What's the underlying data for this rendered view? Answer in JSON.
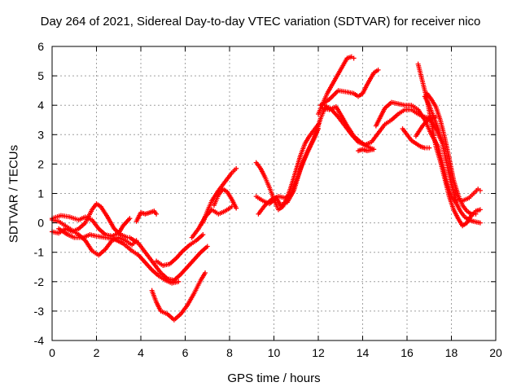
{
  "chart_data": {
    "type": "scatter",
    "title": "Day 264 of 2021, Sidereal Day-to-day VTEC variation (SDTVAR) for receiver nico",
    "xlabel": "GPS time / hours",
    "ylabel": "SDTVAR / TECUs",
    "xlim": [
      0,
      20
    ],
    "ylim": [
      -4,
      6
    ],
    "xticks": [
      "0",
      "2",
      "4",
      "6",
      "8",
      "10",
      "12",
      "14",
      "16",
      "18",
      "20"
    ],
    "yticks": [
      "-4",
      "-3",
      "-2",
      "-1",
      "0",
      "1",
      "2",
      "3",
      "4",
      "5",
      "6"
    ],
    "grid": true,
    "marker": "+",
    "color": "#ff0000",
    "series": [
      {
        "values": [
          [
            0.0,
            0.1
          ],
          [
            0.3,
            0.05
          ],
          [
            0.6,
            -0.1
          ],
          [
            0.9,
            -0.25
          ],
          [
            1.2,
            -0.4
          ],
          [
            1.5,
            -0.6
          ],
          [
            1.8,
            -0.95
          ],
          [
            2.1,
            -1.1
          ],
          [
            2.4,
            -0.9
          ],
          [
            2.7,
            -0.6
          ],
          [
            3.0,
            -0.5
          ],
          [
            3.3,
            -0.6
          ],
          [
            3.6,
            -0.75
          ],
          [
            3.8,
            -0.6
          ]
        ]
      },
      {
        "values": [
          [
            0.0,
            -0.3
          ],
          [
            0.3,
            -0.35
          ],
          [
            0.6,
            -0.2
          ],
          [
            0.9,
            -0.3
          ],
          [
            1.2,
            -0.2
          ],
          [
            1.5,
            0.0
          ],
          [
            1.8,
            0.45
          ],
          [
            2.0,
            0.65
          ],
          [
            2.2,
            0.55
          ],
          [
            2.5,
            0.2
          ],
          [
            2.8,
            -0.2
          ],
          [
            3.1,
            -0.4
          ],
          [
            3.4,
            -0.5
          ]
        ]
      },
      {
        "values": [
          [
            0.0,
            0.15
          ],
          [
            0.4,
            0.25
          ],
          [
            0.8,
            0.2
          ],
          [
            1.2,
            0.1
          ],
          [
            1.5,
            0.2
          ],
          [
            1.8,
            0.1
          ],
          [
            2.1,
            -0.2
          ],
          [
            2.4,
            -0.4
          ],
          [
            2.7,
            -0.45
          ],
          [
            3.0,
            -0.35
          ],
          [
            3.2,
            -0.1
          ],
          [
            3.5,
            0.15
          ]
        ]
      },
      {
        "values": [
          [
            0.3,
            -0.2
          ],
          [
            0.7,
            -0.4
          ],
          [
            1.0,
            -0.5
          ],
          [
            1.4,
            -0.5
          ],
          [
            1.7,
            -0.4
          ],
          [
            2.0,
            -0.45
          ],
          [
            2.4,
            -0.5
          ],
          [
            2.8,
            -0.55
          ],
          [
            3.2,
            -0.7
          ],
          [
            3.6,
            -0.95
          ],
          [
            3.9,
            -1.1
          ],
          [
            4.2,
            -1.35
          ],
          [
            4.5,
            -1.6
          ],
          [
            4.8,
            -1.8
          ],
          [
            5.1,
            -1.95
          ],
          [
            5.4,
            -2.05
          ],
          [
            5.7,
            -2.0
          ]
        ]
      },
      {
        "values": [
          [
            3.5,
            -0.5
          ],
          [
            3.9,
            -0.7
          ],
          [
            4.2,
            -1.0
          ],
          [
            4.6,
            -1.4
          ],
          [
            4.9,
            -1.7
          ],
          [
            5.2,
            -1.9
          ],
          [
            5.5,
            -1.95
          ],
          [
            5.8,
            -1.75
          ],
          [
            6.1,
            -1.5
          ],
          [
            6.4,
            -1.25
          ],
          [
            6.7,
            -1.0
          ],
          [
            7.0,
            -0.8
          ]
        ]
      },
      {
        "values": [
          [
            4.7,
            -1.3
          ],
          [
            5.0,
            -1.45
          ],
          [
            5.3,
            -1.4
          ],
          [
            5.6,
            -1.2
          ],
          [
            5.9,
            -0.95
          ],
          [
            6.2,
            -0.75
          ],
          [
            6.5,
            -0.6
          ],
          [
            6.8,
            -0.4
          ]
        ]
      },
      {
        "values": [
          [
            3.8,
            0.05
          ],
          [
            4.0,
            0.35
          ],
          [
            4.2,
            0.3
          ],
          [
            4.4,
            0.35
          ],
          [
            4.6,
            0.4
          ],
          [
            4.7,
            0.3
          ]
        ]
      },
      {
        "values": [
          [
            4.5,
            -2.3
          ],
          [
            4.7,
            -2.7
          ],
          [
            4.9,
            -3.0
          ],
          [
            5.2,
            -3.1
          ],
          [
            5.5,
            -3.3
          ],
          [
            5.8,
            -3.1
          ],
          [
            6.1,
            -2.8
          ],
          [
            6.4,
            -2.4
          ],
          [
            6.7,
            -1.95
          ],
          [
            6.9,
            -1.7
          ]
        ]
      },
      {
        "values": [
          [
            6.3,
            -0.5
          ],
          [
            6.6,
            -0.2
          ],
          [
            6.9,
            0.2
          ],
          [
            7.2,
            0.45
          ],
          [
            7.5,
            0.3
          ],
          [
            7.8,
            0.4
          ],
          [
            8.1,
            0.55
          ]
        ]
      },
      {
        "values": [
          [
            6.8,
            0.0
          ],
          [
            7.0,
            0.4
          ],
          [
            7.2,
            0.75
          ],
          [
            7.5,
            1.1
          ],
          [
            7.8,
            1.4
          ],
          [
            8.1,
            1.7
          ],
          [
            8.3,
            1.85
          ]
        ]
      },
      {
        "values": [
          [
            7.3,
            0.6
          ],
          [
            7.5,
            0.95
          ],
          [
            7.7,
            1.15
          ],
          [
            7.9,
            1.05
          ],
          [
            8.1,
            0.8
          ],
          [
            8.3,
            0.5
          ]
        ]
      },
      {
        "values": [
          [
            9.2,
            2.05
          ],
          [
            9.4,
            1.85
          ],
          [
            9.6,
            1.55
          ],
          [
            9.8,
            1.2
          ],
          [
            10.0,
            0.8
          ],
          [
            10.2,
            0.45
          ],
          [
            10.4,
            0.55
          ],
          [
            10.6,
            0.85
          ],
          [
            10.8,
            1.3
          ],
          [
            11.0,
            1.8
          ],
          [
            11.2,
            2.3
          ],
          [
            11.4,
            2.7
          ],
          [
            11.6,
            2.95
          ],
          [
            11.8,
            3.15
          ],
          [
            12.0,
            3.35
          ]
        ]
      },
      {
        "values": [
          [
            9.3,
            0.3
          ],
          [
            9.6,
            0.6
          ],
          [
            9.9,
            0.8
          ],
          [
            10.2,
            0.9
          ],
          [
            10.5,
            0.85
          ],
          [
            10.8,
            1.0
          ],
          [
            11.0,
            1.4
          ],
          [
            11.3,
            2.05
          ],
          [
            11.6,
            2.55
          ],
          [
            11.9,
            3.05
          ],
          [
            12.1,
            3.55
          ],
          [
            12.3,
            3.9
          ]
        ]
      },
      {
        "values": [
          [
            9.2,
            0.9
          ],
          [
            9.5,
            0.75
          ],
          [
            9.8,
            0.65
          ],
          [
            10.1,
            0.85
          ],
          [
            10.3,
            0.6
          ],
          [
            10.6,
            0.7
          ],
          [
            10.9,
            1.1
          ],
          [
            11.2,
            1.85
          ],
          [
            11.5,
            2.4
          ],
          [
            11.8,
            2.85
          ],
          [
            12.0,
            3.2
          ]
        ]
      },
      {
        "values": [
          [
            12.0,
            3.7
          ],
          [
            12.2,
            4.05
          ],
          [
            12.4,
            4.4
          ],
          [
            12.7,
            4.8
          ],
          [
            13.0,
            5.2
          ],
          [
            13.3,
            5.6
          ],
          [
            13.5,
            5.65
          ],
          [
            13.6,
            5.6
          ]
        ]
      },
      {
        "values": [
          [
            12.1,
            4.0
          ],
          [
            12.5,
            4.2
          ],
          [
            12.9,
            4.5
          ],
          [
            13.3,
            4.45
          ],
          [
            13.6,
            4.4
          ],
          [
            13.8,
            4.3
          ],
          [
            14.0,
            4.4
          ],
          [
            14.2,
            4.7
          ],
          [
            14.5,
            5.1
          ],
          [
            14.7,
            5.2
          ]
        ]
      },
      {
        "values": [
          [
            12.3,
            4.0
          ],
          [
            12.6,
            3.85
          ],
          [
            12.9,
            3.6
          ],
          [
            13.2,
            3.3
          ],
          [
            13.5,
            3.0
          ],
          [
            13.8,
            2.75
          ],
          [
            14.1,
            2.65
          ],
          [
            14.4,
            2.75
          ],
          [
            14.7,
            3.05
          ],
          [
            15.0,
            3.35
          ],
          [
            15.3,
            3.5
          ],
          [
            15.6,
            3.7
          ],
          [
            15.9,
            3.85
          ],
          [
            16.2,
            3.85
          ],
          [
            16.5,
            3.7
          ],
          [
            16.8,
            3.6
          ],
          [
            17.1,
            3.55
          ],
          [
            17.3,
            3.6
          ]
        ]
      },
      {
        "values": [
          [
            12.2,
            3.9
          ],
          [
            12.5,
            3.85
          ],
          [
            12.8,
            3.95
          ],
          [
            13.0,
            3.7
          ],
          [
            13.3,
            3.3
          ],
          [
            13.6,
            2.95
          ],
          [
            13.9,
            2.75
          ],
          [
            14.2,
            2.6
          ],
          [
            14.5,
            2.5
          ]
        ]
      },
      {
        "values": [
          [
            13.8,
            2.45
          ],
          [
            14.0,
            2.5
          ],
          [
            14.2,
            2.45
          ],
          [
            14.5,
            2.5
          ]
        ]
      },
      {
        "values": [
          [
            14.6,
            3.3
          ],
          [
            14.8,
            3.6
          ],
          [
            15.0,
            3.9
          ],
          [
            15.3,
            4.1
          ],
          [
            15.6,
            4.05
          ],
          [
            15.9,
            4.0
          ],
          [
            16.2,
            4.0
          ],
          [
            16.5,
            3.85
          ],
          [
            16.8,
            3.5
          ],
          [
            17.1,
            3.0
          ],
          [
            17.4,
            2.6
          ],
          [
            17.6,
            2.0
          ],
          [
            17.8,
            1.35
          ],
          [
            18.0,
            0.9
          ],
          [
            18.2,
            0.7
          ],
          [
            18.4,
            0.4
          ],
          [
            18.6,
            0.2
          ],
          [
            18.8,
            0.1
          ],
          [
            19.0,
            0.05
          ],
          [
            19.3,
            0.0
          ]
        ]
      },
      {
        "values": [
          [
            15.8,
            3.2
          ],
          [
            16.0,
            3.0
          ],
          [
            16.2,
            2.8
          ],
          [
            16.4,
            2.7
          ],
          [
            16.6,
            2.6
          ],
          [
            16.8,
            2.55
          ],
          [
            17.0,
            2.55
          ]
        ]
      },
      {
        "values": [
          [
            16.5,
            5.4
          ],
          [
            16.7,
            4.8
          ],
          [
            16.9,
            4.2
          ],
          [
            17.1,
            3.4
          ],
          [
            17.3,
            2.6
          ],
          [
            17.5,
            2.1
          ],
          [
            17.7,
            1.5
          ],
          [
            17.9,
            0.9
          ],
          [
            18.1,
            0.45
          ],
          [
            18.3,
            0.15
          ],
          [
            18.5,
            -0.1
          ],
          [
            18.7,
            0.0
          ],
          [
            18.9,
            0.25
          ],
          [
            19.1,
            0.4
          ],
          [
            19.3,
            0.45
          ]
        ]
      },
      {
        "values": [
          [
            16.8,
            4.3
          ],
          [
            17.0,
            4.0
          ],
          [
            17.2,
            3.6
          ],
          [
            17.4,
            3.2
          ],
          [
            17.6,
            2.7
          ],
          [
            17.8,
            2.0
          ],
          [
            18.0,
            1.3
          ],
          [
            18.2,
            0.8
          ],
          [
            18.5,
            0.75
          ],
          [
            18.8,
            0.85
          ],
          [
            19.0,
            1.0
          ],
          [
            19.2,
            1.15
          ],
          [
            19.3,
            1.1
          ]
        ]
      },
      {
        "values": [
          [
            16.9,
            4.4
          ],
          [
            17.1,
            4.2
          ],
          [
            17.3,
            3.95
          ],
          [
            17.5,
            3.5
          ],
          [
            17.7,
            2.9
          ],
          [
            17.9,
            2.2
          ],
          [
            18.1,
            1.45
          ],
          [
            18.3,
            0.95
          ],
          [
            18.5,
            0.6
          ],
          [
            18.7,
            0.4
          ],
          [
            18.9,
            0.3
          ],
          [
            19.1,
            0.3
          ]
        ]
      },
      {
        "values": [
          [
            16.4,
            2.95
          ],
          [
            16.7,
            3.3
          ],
          [
            17.0,
            3.55
          ],
          [
            17.3,
            3.2
          ],
          [
            17.6,
            2.7
          ]
        ]
      }
    ]
  }
}
